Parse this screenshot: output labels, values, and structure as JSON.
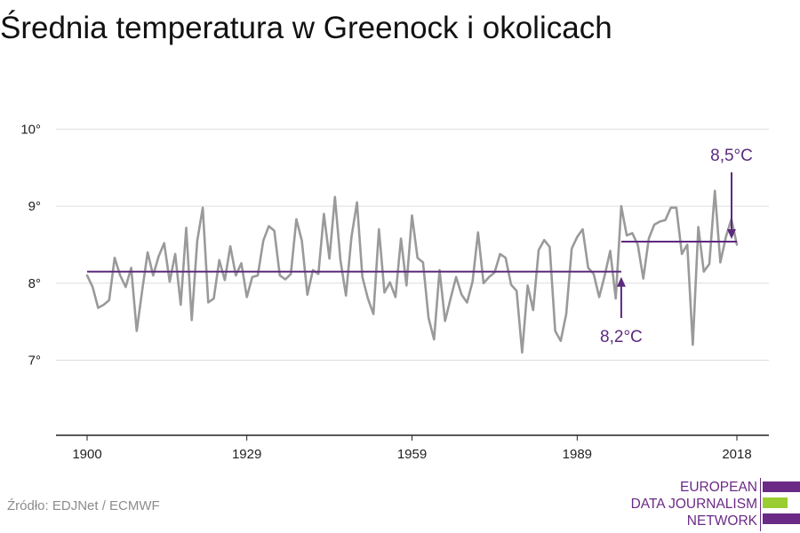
{
  "title": "Średnia temperatura w Greenock i okolicach",
  "source": "Źródło: EDJNet / ECMWF",
  "logo": {
    "lines": [
      "EUROPEAN",
      "DATA JOURNALISM",
      "NETWORK"
    ]
  },
  "colors": {
    "series": "#9a9a9a",
    "accent": "#5c2a7e",
    "grid": "#dddddd",
    "axis": "#222222",
    "logo_purple": "#6b2a86",
    "logo_green": "#9acd32"
  },
  "chart_data": {
    "type": "line",
    "title": "Średnia temperatura w Greenock i okolicach",
    "xlabel": "",
    "ylabel": "",
    "xlim": [
      1900,
      2018
    ],
    "ylim": [
      6,
      10
    ],
    "x_ticks": [
      1900,
      1929,
      1959,
      1989,
      2018
    ],
    "x_tick_labels": [
      "1900",
      "1929",
      "1959",
      "1989",
      "2018"
    ],
    "y_ticks": [
      7,
      8,
      9,
      10
    ],
    "y_tick_labels": [
      "7°",
      "8°",
      "9°",
      "10°"
    ],
    "grid": "horizontal",
    "series": [
      {
        "x_start": 1900,
        "values": [
          8.1,
          7.95,
          7.68,
          7.72,
          7.78,
          8.33,
          8.1,
          7.95,
          8.2,
          7.38,
          7.9,
          8.4,
          8.1,
          8.35,
          8.52,
          8.02,
          8.38,
          7.72,
          8.72,
          7.52,
          8.55,
          8.98,
          7.75,
          7.8,
          8.3,
          8.04,
          8.48,
          8.1,
          8.26,
          7.82,
          8.08,
          8.1,
          8.55,
          8.74,
          8.68,
          8.1,
          8.05,
          8.12,
          8.83,
          8.55,
          7.85,
          8.17,
          8.12,
          8.9,
          8.32,
          9.12,
          8.3,
          7.84,
          8.6,
          9.05,
          8.08,
          7.8,
          7.6,
          8.7,
          7.88,
          8.01,
          7.82,
          8.58,
          7.97,
          8.88,
          8.33,
          8.27,
          7.55,
          7.27,
          8.17,
          7.51,
          7.8,
          8.08,
          7.85,
          7.75,
          8.02,
          8.66,
          8.0,
          8.08,
          8.14,
          8.38,
          8.33,
          7.98,
          7.9,
          7.1,
          7.97,
          7.65,
          8.43,
          8.56,
          8.47,
          7.38,
          7.25,
          7.6,
          8.45,
          8.6,
          8.7,
          8.2,
          8.12,
          7.82,
          8.1,
          8.42,
          7.8,
          9.0,
          8.62,
          8.65,
          8.5,
          8.06,
          8.58,
          8.76,
          8.8,
          8.82,
          8.98,
          8.98,
          8.38,
          8.5,
          7.2,
          8.73,
          8.15,
          8.25,
          9.2,
          8.27,
          8.6,
          8.83,
          8.5
        ]
      }
    ],
    "reference_lines": [
      {
        "from": 1900,
        "to": 1997,
        "value": 8.15,
        "label": "8,2°C"
      },
      {
        "from": 1997,
        "to": 2018,
        "value": 8.54,
        "label": "8,5°C"
      }
    ]
  }
}
